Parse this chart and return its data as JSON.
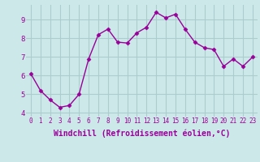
{
  "x": [
    0,
    1,
    2,
    3,
    4,
    5,
    6,
    7,
    8,
    9,
    10,
    11,
    12,
    13,
    14,
    15,
    16,
    17,
    18,
    19,
    20,
    21,
    22,
    23
  ],
  "y": [
    6.1,
    5.2,
    4.7,
    4.3,
    4.4,
    5.0,
    6.9,
    8.2,
    8.5,
    7.8,
    7.75,
    8.3,
    8.6,
    9.4,
    9.1,
    9.3,
    8.5,
    7.8,
    7.5,
    7.4,
    6.5,
    6.9,
    6.5,
    7.0
  ],
  "line_color": "#990099",
  "marker": "D",
  "marker_size": 2.5,
  "bg_color": "#cce8e8",
  "grid_color": "#aacece",
  "xlabel": "Windchill (Refroidissement éolien,°C)",
  "xlabel_color": "#990099",
  "ylabel_ticks": [
    4,
    5,
    6,
    7,
    8,
    9
  ],
  "xtick_labels": [
    "0",
    "1",
    "2",
    "3",
    "4",
    "5",
    "6",
    "7",
    "8",
    "9",
    "10",
    "11",
    "12",
    "13",
    "14",
    "15",
    "16",
    "17",
    "18",
    "19",
    "20",
    "21",
    "22",
    "23"
  ],
  "ylim": [
    3.8,
    9.8
  ],
  "xlim": [
    -0.5,
    23.5
  ],
  "tick_color": "#990099",
  "tick_fontsize": 5.5,
  "xlabel_fontsize": 7.0,
  "linewidth": 1.0
}
